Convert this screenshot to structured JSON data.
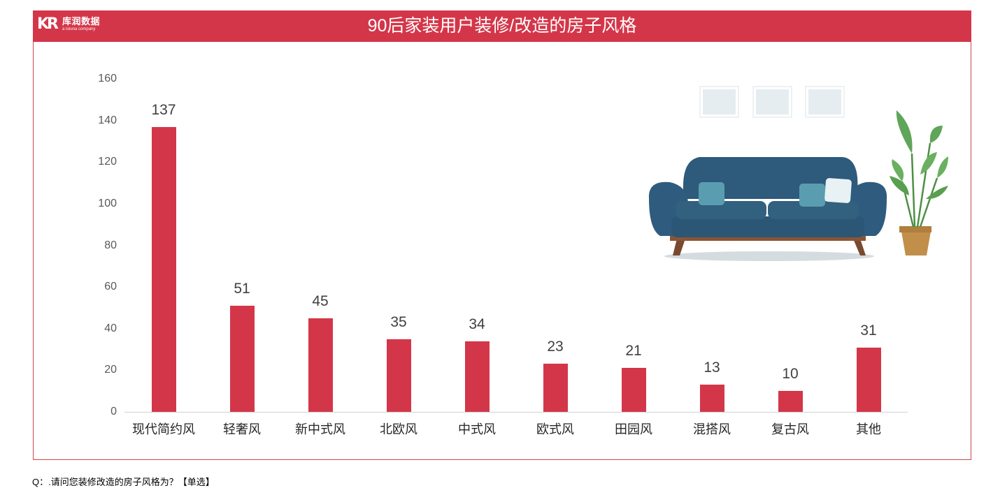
{
  "header": {
    "logo_mark": "KR",
    "logo_name": "库润数据",
    "logo_tagline": "a toluna company",
    "title": "90后家装用户装修/改造的房子风格"
  },
  "colors": {
    "accent": "#d43649",
    "bar": "#d43649",
    "frame_border": "#c9474f",
    "axis_text": "#595959",
    "value_text": "#404040"
  },
  "chart_data": {
    "type": "bar",
    "title": "90后家装用户装修/改造的房子风格",
    "xlabel": "",
    "ylabel": "",
    "ylim": [
      0,
      160
    ],
    "yticks": [
      0,
      20,
      40,
      60,
      80,
      100,
      120,
      140,
      160
    ],
    "grid": false,
    "legend": "none",
    "categories": [
      "现代简约风",
      "轻奢风",
      "新中式风",
      "北欧风",
      "中式风",
      "欧式风",
      "田园风",
      "混搭风",
      "复古风",
      "其他"
    ],
    "values": [
      137,
      51,
      45,
      35,
      34,
      23,
      21,
      13,
      10,
      31
    ],
    "data_labels": true
  },
  "illustration": {
    "description": "sofa with cushions, three wall frames, potted plant"
  },
  "footer": {
    "question": "Q：.请问您装修改造的房子风格为？【单选】"
  }
}
